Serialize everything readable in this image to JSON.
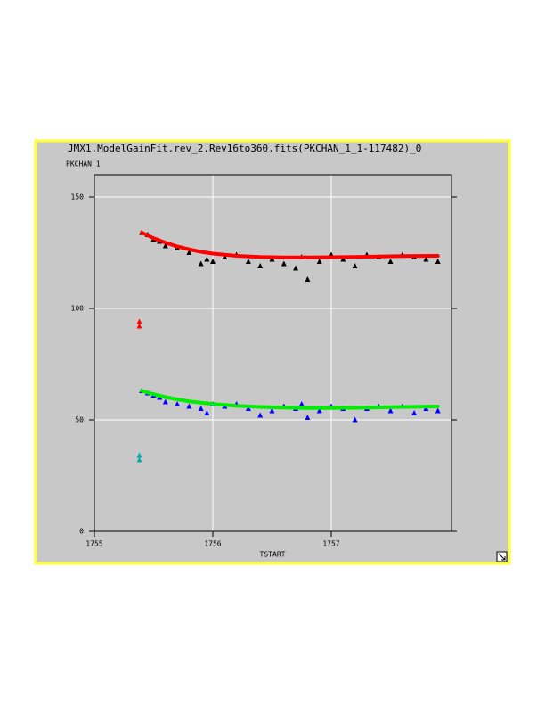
{
  "chart_data": {
    "type": "scatter",
    "title": "JMX1.ModelGainFit.rev_2.Rev16to360.fits(PKCHAN_1_1-117482)_0",
    "y_label": "PKCHAN_1",
    "x_label": "TSTART",
    "xlim": [
      1755,
      1758.015
    ],
    "ylim": [
      0,
      160
    ],
    "xticks": [
      1755,
      1756,
      1757
    ],
    "yticks": [
      0,
      50,
      100,
      150
    ],
    "grid": true,
    "series": [
      {
        "color": "#000000",
        "marker": "triangle",
        "x": [
          1755.4,
          1755.45,
          1755.5,
          1755.55,
          1755.6,
          1755.7,
          1755.8,
          1755.9,
          1755.95,
          1756.0,
          1756.1,
          1756.2,
          1756.3,
          1756.4,
          1756.5,
          1756.6,
          1756.7,
          1756.75,
          1756.8,
          1756.9,
          1757.0,
          1757.1,
          1757.2,
          1757.3,
          1757.4,
          1757.5,
          1757.6,
          1757.7,
          1757.8,
          1757.9
        ],
        "values": [
          134,
          133,
          131,
          130,
          128,
          127,
          125,
          120,
          122,
          121,
          123,
          124,
          121,
          119,
          122,
          120,
          118,
          123,
          113,
          121,
          124,
          122,
          119,
          124,
          123,
          121,
          124,
          123,
          122,
          121
        ]
      },
      {
        "color": "#0000ff",
        "marker": "triangle",
        "x": [
          1755.4,
          1755.45,
          1755.5,
          1755.55,
          1755.6,
          1755.7,
          1755.8,
          1755.9,
          1755.95,
          1756.0,
          1756.1,
          1756.2,
          1756.3,
          1756.4,
          1756.5,
          1756.6,
          1756.7,
          1756.75,
          1756.8,
          1756.9,
          1757.0,
          1757.1,
          1757.2,
          1757.3,
          1757.4,
          1757.5,
          1757.6,
          1757.7,
          1757.8,
          1757.9
        ],
        "values": [
          63,
          62,
          61,
          60,
          58,
          57,
          56,
          55,
          53,
          57,
          56,
          57,
          55,
          52,
          54,
          56,
          55,
          57,
          51,
          54,
          56,
          55,
          50,
          55,
          56,
          54,
          56,
          53,
          55,
          54
        ]
      },
      {
        "color": "#ff0000",
        "marker": "line",
        "x": [
          1755.4,
          1755.5,
          1755.6,
          1755.7,
          1755.8,
          1755.9,
          1756.0,
          1756.2,
          1756.4,
          1756.6,
          1756.8,
          1757.0,
          1757.2,
          1757.4,
          1757.6,
          1757.9
        ],
        "values": [
          134,
          131.5,
          129.5,
          127.8,
          126.5,
          125.4,
          124.6,
          123.6,
          123.1,
          122.9,
          122.9,
          123,
          123.1,
          123.3,
          123.5,
          123.6
        ]
      },
      {
        "color": "#00ee00",
        "marker": "line",
        "x": [
          1755.4,
          1755.5,
          1755.6,
          1755.7,
          1755.8,
          1755.9,
          1756.0,
          1756.2,
          1756.4,
          1756.6,
          1756.8,
          1757.0,
          1757.2,
          1757.4,
          1757.6,
          1757.9
        ],
        "values": [
          63,
          61.5,
          60.2,
          59.2,
          58.3,
          57.7,
          57.1,
          56.3,
          55.8,
          55.5,
          55.3,
          55.3,
          55.4,
          55.6,
          55.8,
          56
        ]
      },
      {
        "color": "#ff0000",
        "marker": "triangle",
        "x": [
          1755.38,
          1755.38
        ],
        "values": [
          94,
          92
        ]
      },
      {
        "color": "#00aaaa",
        "marker": "triangle",
        "x": [
          1755.38,
          1755.38
        ],
        "values": [
          34,
          32
        ]
      }
    ]
  }
}
